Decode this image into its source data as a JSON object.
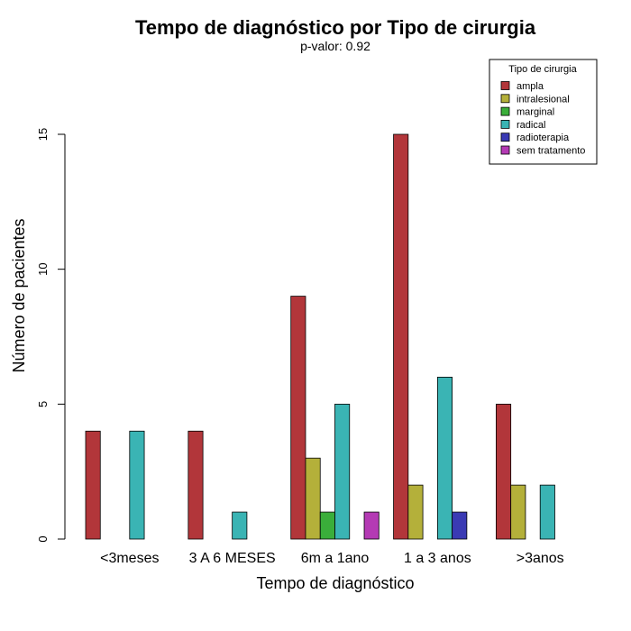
{
  "chart_data": {
    "type": "bar",
    "title": "Tempo de diagnóstico por Tipo de cirurgia",
    "subtitle": "p-valor: 0.92",
    "xlabel": "Tempo de diagnóstico",
    "ylabel": "Número de pacientes",
    "ylim": [
      0,
      15
    ],
    "yticks": [
      0,
      5,
      10,
      15
    ],
    "grid": false,
    "legend_position": "top-right",
    "legend_title": "Tipo de cirurgia",
    "categories": [
      "<3meses",
      "3 A 6 MESES",
      "6m a 1ano",
      "1 a 3 anos",
      ">3anos"
    ],
    "series": [
      {
        "name": "ampla",
        "color": "#b2363a",
        "values": [
          4,
          4,
          9,
          15,
          5
        ]
      },
      {
        "name": "intralesional",
        "color": "#b4b03a",
        "values": [
          0,
          0,
          3,
          2,
          2
        ]
      },
      {
        "name": "marginal",
        "color": "#3aae3a",
        "values": [
          0,
          0,
          1,
          0,
          0
        ]
      },
      {
        "name": "radical",
        "color": "#3ab4b4",
        "values": [
          4,
          1,
          5,
          6,
          2
        ]
      },
      {
        "name": "radioterapia",
        "color": "#3a3ab4",
        "values": [
          0,
          0,
          0,
          1,
          0
        ]
      },
      {
        "name": "sem tratamento",
        "color": "#b43ab4",
        "values": [
          0,
          0,
          1,
          0,
          0
        ]
      }
    ]
  }
}
